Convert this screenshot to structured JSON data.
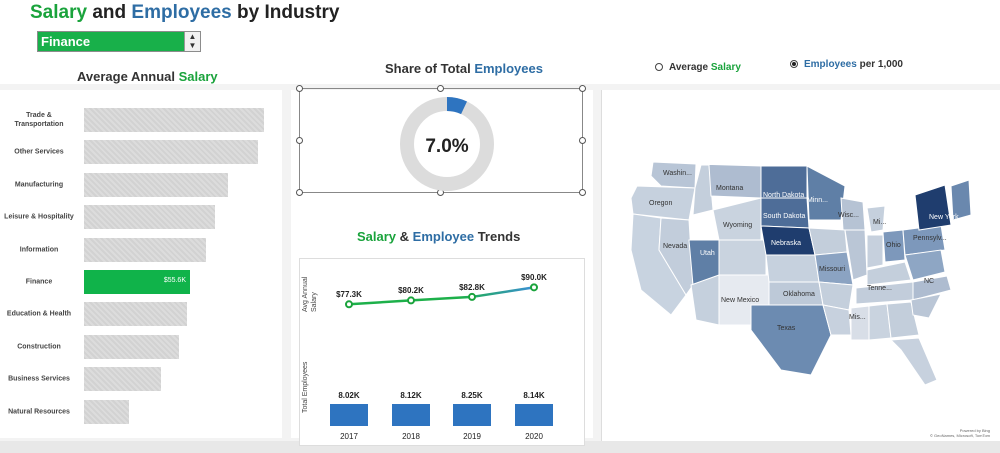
{
  "header": {
    "title_part1": "Salary",
    "title_part2": " and ",
    "title_part3": "Employees",
    "title_part4": " by Industry"
  },
  "industry_select": {
    "value": "Finance",
    "arrows": "▲▼"
  },
  "salary_panel": {
    "title_part1": "Average Annual ",
    "title_part2": "Salary",
    "selected_value_label": "$55.6K",
    "industries": [
      {
        "line1": "Trade &",
        "line2": "Transportation",
        "length": 1.0,
        "selected": false
      },
      {
        "line1": "Other Services",
        "line2": "",
        "length": 0.965,
        "selected": false
      },
      {
        "line1": "Manufacturing",
        "line2": "",
        "length": 0.8,
        "selected": false
      },
      {
        "line1": "Leisure & Hospitality",
        "line2": "",
        "length": 0.73,
        "selected": false
      },
      {
        "line1": "Information",
        "line2": "",
        "length": 0.68,
        "selected": false
      },
      {
        "line1": "Finance",
        "line2": "",
        "length": 0.59,
        "selected": true
      },
      {
        "line1": "Education & Health",
        "line2": "",
        "length": 0.57,
        "selected": false
      },
      {
        "line1": "Construction",
        "line2": "",
        "length": 0.53,
        "selected": false
      },
      {
        "line1": "Business Services",
        "line2": "",
        "length": 0.43,
        "selected": false
      },
      {
        "line1": "Natural Resources",
        "line2": "",
        "length": 0.25,
        "selected": false
      }
    ]
  },
  "share_panel": {
    "title_part1": "Share of Total ",
    "title_part2": "Employees",
    "value": "7.0%",
    "fraction": 0.07
  },
  "trends_panel": {
    "title_part1": "Salary",
    "title_part2": " & ",
    "title_part3": "Employee",
    "title_part4": " Trends",
    "salary_axis_label": "Avg Annual\nSalary",
    "employees_axis_label": "Total  Employees",
    "years": [
      "2017",
      "2018",
      "2019",
      "2020"
    ],
    "salary_labels": [
      "$77.3K",
      "$80.2K",
      "$82.8K",
      "$90.0K"
    ],
    "salary_values": [
      77.3,
      80.2,
      82.8,
      90.0
    ],
    "employee_labels": [
      "8.02K",
      "8.12K",
      "8.25K",
      "8.14K"
    ]
  },
  "map_panel": {
    "option1_part1": "Average ",
    "option1_part2": "Salary",
    "option2_part1": "Employees",
    "option2_part2": " per 1,000",
    "selected_option": 2,
    "state_labels": [
      "Washin...",
      "Montana",
      "North Dakota",
      "Minn...",
      "Oregon",
      "South Dakota",
      "Wyoming",
      "Wisc...",
      "Mi...",
      "New York",
      "Nebraska",
      "Pennsylv...",
      "Nevada",
      "Utah",
      "Ohio",
      "Missouri",
      "New Mexico",
      "Oklahoma",
      "Tenne...",
      "Texas",
      "Mis...",
      "NC"
    ],
    "credit_line1": "Powered by Bing",
    "credit_line2": "© GeoNames, Microsoft, TomTom"
  },
  "colors": {
    "accent_green": "#1aa33c",
    "accent_blue": "#2e6da4",
    "selected_bar": "#10b34a",
    "employee_bar": "#2e74c0"
  }
}
